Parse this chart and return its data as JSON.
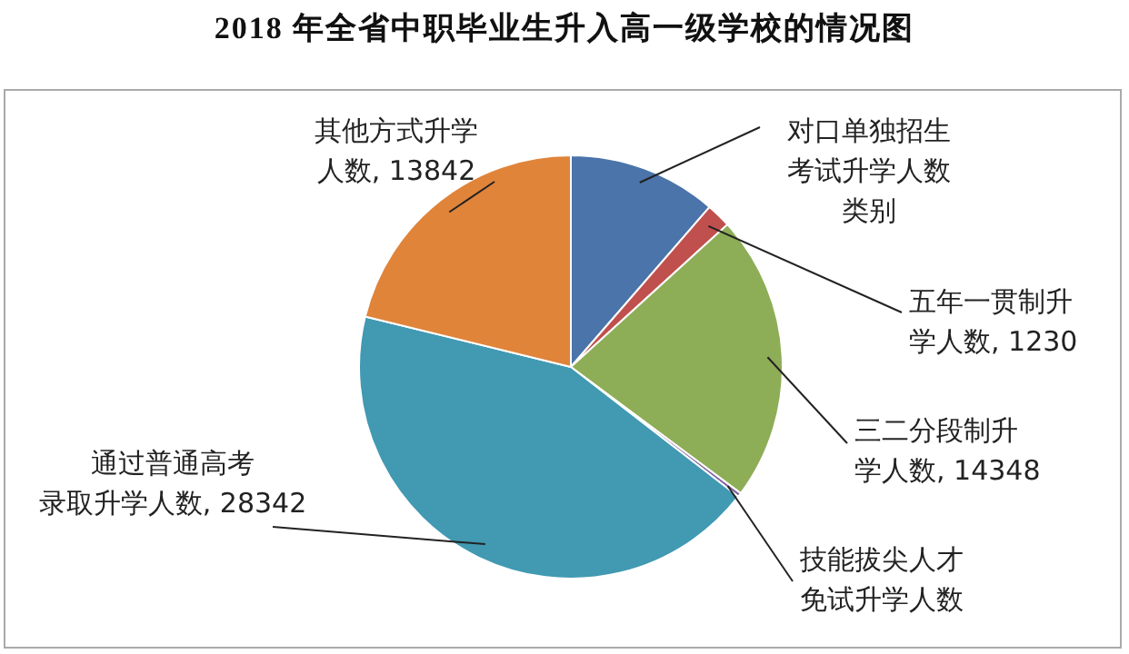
{
  "chart_data": {
    "type": "pie",
    "title": "2018 年全省中职毕业生升入高一级学校的情况图",
    "categories": [
      "对口单独招生考试升学人数",
      "五年一贯制升学人数",
      "三二分段制升学人数",
      "技能拔尖人才免试升学人数",
      "通过普通高考录取升学人数",
      "其他方式升学人数"
    ],
    "values": [
      7430,
      1230,
      14348,
      200,
      28342,
      13842
    ],
    "value_labels": [
      null,
      "1230",
      "14348",
      null,
      "28342",
      "13842"
    ],
    "colors": [
      "#4a74aa",
      "#c0504d",
      "#8ead57",
      "#7f63a2",
      "#4199b2",
      "#e0843a"
    ],
    "annotations": [
      "类别"
    ],
    "legend": false
  }
}
